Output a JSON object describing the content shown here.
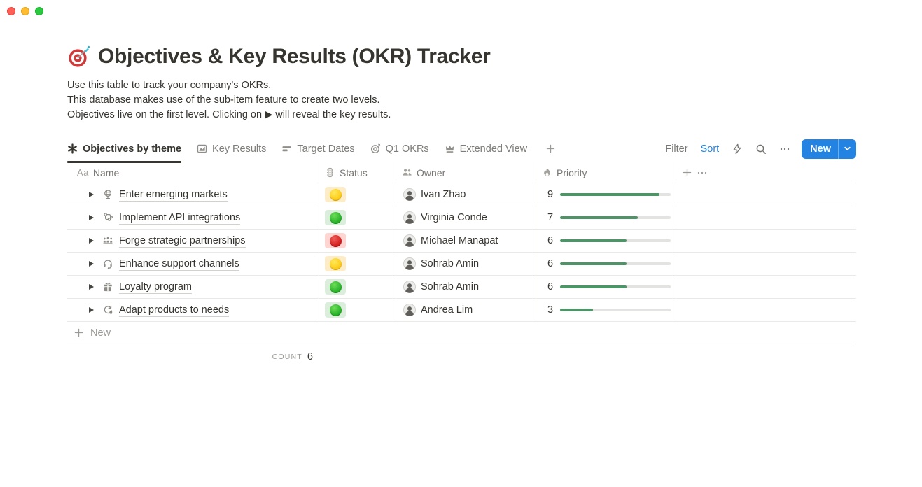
{
  "window": {
    "traffic_lights": [
      "close",
      "minimize",
      "zoom"
    ]
  },
  "page": {
    "icon": "dartboard-emoji",
    "title": "Objectives & Key Results (OKR) Tracker",
    "description": [
      "Use this table to track your company's OKRs.",
      "This database makes use of the sub-item feature to create two levels.",
      "Objectives live on the first level. Clicking on ▶ will reveal the key results."
    ]
  },
  "view_tabs": [
    {
      "label": "Objectives by theme",
      "icon": "spark-icon",
      "active": true
    },
    {
      "label": "Key Results",
      "icon": "chart-icon",
      "active": false
    },
    {
      "label": "Target Dates",
      "icon": "timeline-icon",
      "active": false
    },
    {
      "label": "Q1 OKRs",
      "icon": "target-icon",
      "active": false
    },
    {
      "label": "Extended View",
      "icon": "crown-icon",
      "active": false
    }
  ],
  "toolbar": {
    "add_view_icon": "plus-icon",
    "filter_label": "Filter",
    "sort_label": "Sort",
    "sort_active_color": "#2383e2",
    "icon_buttons": [
      "bolt-icon",
      "search-icon",
      "more-icon"
    ],
    "new_button": {
      "label": "New",
      "color": "#2383e2",
      "dropdown_icon": "chevron-down-icon"
    }
  },
  "table": {
    "columns": [
      {
        "label": "Name",
        "icon": "text-icon"
      },
      {
        "label": "Status",
        "icon": "traffic-light-icon"
      },
      {
        "label": "Owner",
        "icon": "people-icon"
      },
      {
        "label": "Priority",
        "icon": "flame-icon"
      }
    ],
    "header_extra_icons": [
      "plus-icon",
      "more-icon"
    ],
    "rows": [
      {
        "icon": "globe-stand-icon",
        "name": "Enter emerging markets",
        "status": "yellow",
        "owner": "Ivan Zhao",
        "priority": 9
      },
      {
        "icon": "api-nodes-icon",
        "name": "Implement API integrations",
        "status": "green",
        "owner": "Virginia Conde",
        "priority": 7
      },
      {
        "icon": "people-group-icon",
        "name": "Forge strategic partnerships",
        "status": "red",
        "owner": "Michael Manapat",
        "priority": 6
      },
      {
        "icon": "headset-icon",
        "name": "Enhance support channels",
        "status": "yellow",
        "owner": "Sohrab Amin",
        "priority": 6
      },
      {
        "icon": "gift-icon",
        "name": "Loyalty program",
        "status": "green",
        "owner": "Sohrab Amin",
        "priority": 6
      },
      {
        "icon": "loop-arrow-icon",
        "name": "Adapt products to needs",
        "status": "green",
        "owner": "Andrea Lim",
        "priority": 3
      }
    ],
    "status_colors": {
      "yellow": {
        "bg": "#fdecc8",
        "dot": "#fdd020"
      },
      "green": {
        "bg": "#dbeddb",
        "dot": "#2cb52c"
      },
      "red": {
        "bg": "#ffd5d2",
        "dot": "#d42222"
      }
    },
    "priority_max": 10,
    "priority_bar_color": "#4d9466",
    "priority_track_color": "#e3e3e1"
  },
  "footer": {
    "new_row_label": "New",
    "count_label": "COUNT",
    "count_value": "6"
  }
}
